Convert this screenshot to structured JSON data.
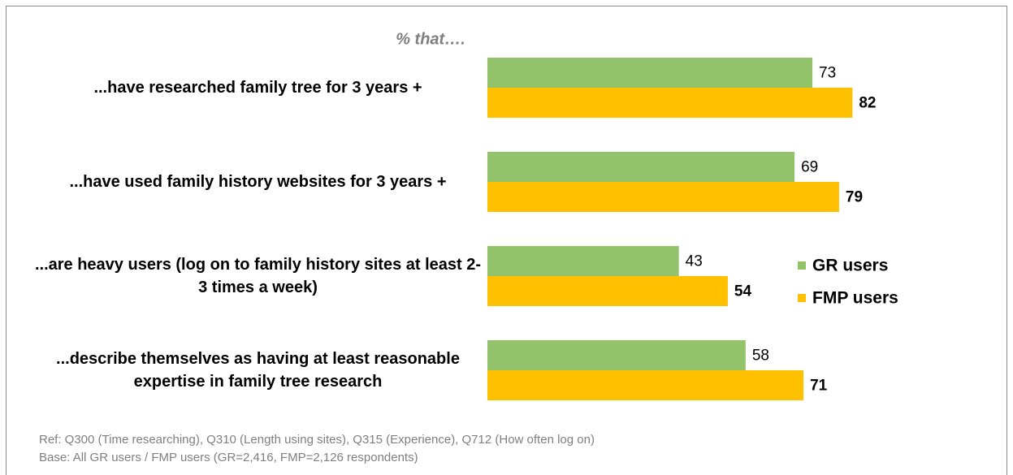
{
  "chart_data": {
    "type": "bar",
    "orientation": "horizontal",
    "subtitle": "% that….",
    "categories": [
      "...have researched family tree for 3 years +",
      "...have used family history websites for 3 years +",
      "...are heavy users (log on to family history sites at least 2-3 times a week)",
      "...describe themselves as having at least reasonable expertise in family tree research"
    ],
    "series": [
      {
        "name": "GR users",
        "color": "#92c36a",
        "values": [
          73,
          69,
          43,
          58
        ]
      },
      {
        "name": "FMP users",
        "color": "#ffc000",
        "values": [
          82,
          79,
          54,
          71
        ]
      }
    ],
    "footnotes": [
      "Ref: Q300 (Time researching), Q310 (Length using sites), Q315 (Experience), Q712 (How often log on)",
      "Base: All GR users / FMP users (GR=2,416, FMP=2,126 respondents)"
    ],
    "legend": "right"
  }
}
